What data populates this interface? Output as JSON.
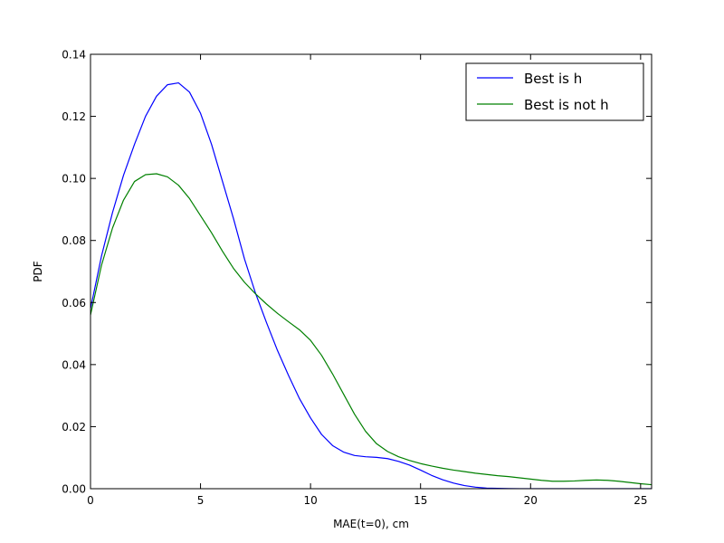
{
  "chart_data": {
    "type": "line",
    "xlabel": "MAE(t=0), cm",
    "ylabel": "PDF",
    "xlim": [
      0,
      25.5
    ],
    "ylim": [
      0,
      0.14
    ],
    "xticks": [
      0,
      5,
      10,
      15,
      20,
      25
    ],
    "xtick_labels": [
      "0",
      "5",
      "10",
      "15",
      "20",
      "25"
    ],
    "yticks": [
      0,
      0.02,
      0.04,
      0.06,
      0.08,
      0.1,
      0.12,
      0.14
    ],
    "ytick_labels": [
      "0.00",
      "0.02",
      "0.04",
      "0.06",
      "0.08",
      "0.10",
      "0.12",
      "0.14"
    ],
    "grid": false,
    "legend_position": "top-right",
    "series": [
      {
        "name": "Best is h",
        "color": "#0000ff",
        "x": [
          0,
          0.5,
          1,
          1.5,
          2,
          2.5,
          3,
          3.5,
          4,
          4.5,
          5,
          5.5,
          6,
          6.5,
          7,
          7.5,
          8,
          8.5,
          9,
          9.5,
          10,
          10.5,
          11,
          11.5,
          12,
          12.5,
          13,
          13.5,
          14,
          14.5,
          15,
          15.5,
          16,
          16.5,
          17,
          17.5,
          18,
          18.5,
          19,
          19.5,
          20,
          21,
          22,
          23,
          24,
          25,
          25.5
        ],
        "y": [
          0.058,
          0.075,
          0.089,
          0.101,
          0.111,
          0.12,
          0.1265,
          0.1302,
          0.1308,
          0.1278,
          0.121,
          0.111,
          0.099,
          0.087,
          0.074,
          0.063,
          0.0535,
          0.0445,
          0.0365,
          0.029,
          0.0228,
          0.0175,
          0.0139,
          0.0118,
          0.0107,
          0.0103,
          0.0101,
          0.0097,
          0.0088,
          0.0076,
          0.006,
          0.0043,
          0.0029,
          0.0018,
          0.001,
          0.0005,
          0.0002,
          0.0001,
          5e-05,
          0,
          0,
          0,
          0,
          0,
          0,
          0,
          0
        ]
      },
      {
        "name": "Best is not h",
        "color": "#008000",
        "x": [
          0,
          0.5,
          1,
          1.5,
          2,
          2.5,
          3,
          3.5,
          4,
          4.5,
          5,
          5.5,
          6,
          6.5,
          7,
          7.5,
          8,
          8.5,
          9,
          9.5,
          10,
          10.5,
          11,
          11.5,
          12,
          12.5,
          13,
          13.5,
          14,
          14.5,
          15,
          15.5,
          16,
          16.5,
          17,
          17.5,
          18,
          18.5,
          19,
          19.5,
          20,
          20.5,
          21,
          21.5,
          22,
          22.5,
          23,
          23.5,
          24,
          24.5,
          25,
          25.5
        ],
        "y": [
          0.056,
          0.072,
          0.084,
          0.093,
          0.099,
          0.1012,
          0.1015,
          0.1005,
          0.0978,
          0.0935,
          0.088,
          0.0825,
          0.0765,
          0.071,
          0.0665,
          0.0628,
          0.0595,
          0.0565,
          0.0538,
          0.0512,
          0.0478,
          0.043,
          0.037,
          0.0305,
          0.024,
          0.0185,
          0.0145,
          0.012,
          0.0103,
          0.0091,
          0.0081,
          0.0073,
          0.0066,
          0.006,
          0.0055,
          0.005,
          0.0046,
          0.0042,
          0.0039,
          0.0035,
          0.0031,
          0.0027,
          0.0024,
          0.0024,
          0.0025,
          0.0027,
          0.0028,
          0.0027,
          0.0024,
          0.002,
          0.0016,
          0.0013
        ]
      }
    ]
  }
}
